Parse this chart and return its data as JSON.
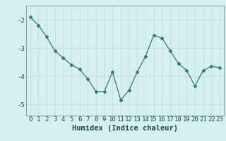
{
  "x": [
    0,
    1,
    2,
    3,
    4,
    5,
    6,
    7,
    8,
    9,
    10,
    11,
    12,
    13,
    14,
    15,
    16,
    17,
    18,
    19,
    20,
    21,
    22,
    23
  ],
  "y": [
    -1.9,
    -2.2,
    -2.6,
    -3.1,
    -3.35,
    -3.6,
    -3.75,
    -4.1,
    -4.55,
    -4.55,
    -3.85,
    -4.85,
    -4.5,
    -3.85,
    -3.3,
    -2.55,
    -2.65,
    -3.1,
    -3.55,
    -3.8,
    -4.35,
    -3.8,
    -3.65,
    -3.7
  ],
  "line_color": "#2e7d6e",
  "marker": "D",
  "marker_size": 2.5,
  "bg_color": "#d6f0ef",
  "grid_color": "#c8dedd",
  "xlabel": "Humidex (Indice chaleur)",
  "ylim": [
    -5.4,
    -1.5
  ],
  "xlim": [
    -0.5,
    23.5
  ],
  "yticks": [
    -5,
    -4,
    -3,
    -2
  ],
  "xticks": [
    0,
    1,
    2,
    3,
    4,
    5,
    6,
    7,
    8,
    9,
    10,
    11,
    12,
    13,
    14,
    15,
    16,
    17,
    18,
    19,
    20,
    21,
    22,
    23
  ],
  "tick_fontsize": 6.5,
  "xlabel_fontsize": 7.5,
  "tick_color": "#1a4a47",
  "xlabel_color": "#1a4a47"
}
